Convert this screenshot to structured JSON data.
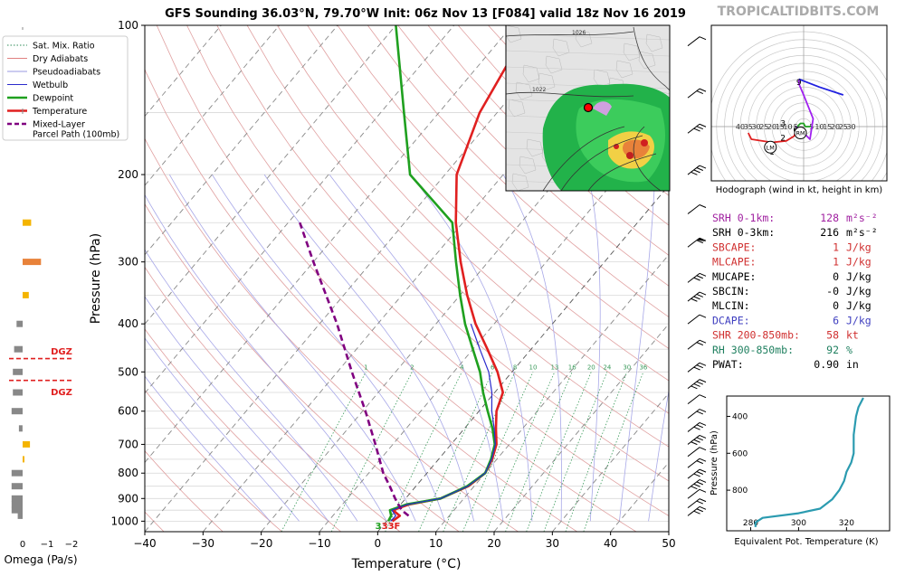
{
  "title": "GFS Sounding 36.03°N, 79.70°W Init: 06z Nov 13 [F084] valid 18z Nov 16 2019",
  "brand": "TROPICALTIDBITS.COM",
  "legend": [
    {
      "label": "Sat. Mix. Ratio",
      "color": "#2e8b57",
      "style": "dotted"
    },
    {
      "label": "Dry Adiabats",
      "color": "#e08080",
      "style": "solid"
    },
    {
      "label": "Pseudoadiabats",
      "color": "#9a9ae0",
      "style": "solid"
    },
    {
      "label": "Wetbulb",
      "color": "#2a2acc",
      "style": "solid"
    },
    {
      "label": "Dewpoint",
      "color": "#1fa01f",
      "style": "thick"
    },
    {
      "label": "Temperature",
      "color": "#e02020",
      "style": "thick"
    },
    {
      "label": "Mixed-Layer\nParcel Path (100mb)",
      "color": "#800080",
      "style": "dashed"
    }
  ],
  "omega_axis": {
    "label": "Omega (Pa/s)",
    "ticks": [
      "0",
      "−1",
      "−2"
    ],
    "dgz_label": "DGZ"
  },
  "skewt": {
    "xlabel": "Temperature (°C)",
    "ylabel": "Pressure (hPa)",
    "x_ticks": [
      "−40",
      "−30",
      "−20",
      "−10",
      "0",
      "10",
      "20",
      "30",
      "40",
      "50"
    ],
    "y_ticks": [
      "100",
      "200",
      "300",
      "400",
      "500",
      "600",
      "700",
      "800",
      "900",
      "1000"
    ],
    "mixratio_labels": [
      "1",
      "2",
      "4",
      "6",
      "8",
      "10",
      "13",
      "16",
      "20",
      "24",
      "30",
      "36"
    ],
    "surface_label_dew": "3",
    "surface_label_temp": "33F"
  },
  "indices": [
    {
      "label": "SRH 0-1km:",
      "value": "128",
      "unit": "m²s⁻²",
      "color": "#a020a0"
    },
    {
      "label": "SRH 0-3km:",
      "value": "216",
      "unit": "m²s⁻²",
      "color": "#000000"
    },
    {
      "label": "SBCAPE:",
      "value": "1",
      "unit": "J/kg",
      "color": "#d03030"
    },
    {
      "label": "MLCAPE:",
      "value": "1",
      "unit": "J/kg",
      "color": "#d03030"
    },
    {
      "label": "MUCAPE:",
      "value": "0",
      "unit": "J/kg",
      "color": "#000000"
    },
    {
      "label": "SBCIN:",
      "value": "-0",
      "unit": "J/kg",
      "color": "#000000"
    },
    {
      "label": "MLCIN:",
      "value": "0",
      "unit": "J/kg",
      "color": "#000000"
    },
    {
      "label": "DCAPE:",
      "value": "6",
      "unit": "J/kg",
      "color": "#4040c0"
    },
    {
      "label": "SHR 200-850mb:",
      "value": "58",
      "unit": "kt",
      "color": "#d03030"
    },
    {
      "label": "RH 300-850mb:",
      "value": "92",
      "unit": "%",
      "color": "#208060"
    },
    {
      "label": "PWAT:",
      "value": "0.90",
      "unit": "in",
      "color": "#000000"
    }
  ],
  "hodograph": {
    "caption": "Hodograph (wind in kt, height in km)",
    "ring_labels": [
      "40",
      "35",
      "30",
      "25",
      "20",
      "15",
      "10",
      "5",
      "5",
      "10",
      "15",
      "20",
      "25",
      "30"
    ],
    "height_labels": [
      "9",
      "3",
      "2",
      "6",
      "1"
    ],
    "markers": [
      "LM",
      "RM"
    ]
  },
  "theta_e": {
    "xlabel": "Equivalent Pot. Temperature (K)",
    "ylabel": "Pressure (hPa)",
    "x_ticks": [
      "280",
      "300",
      "320"
    ],
    "y_ticks": [
      "400",
      "600",
      "800"
    ]
  },
  "map_labels": [
    "1026",
    "1022"
  ],
  "chart_data": [
    {
      "type": "line",
      "title": "GFS Sounding 36.03°N, 79.70°W Init: 06z Nov 13 [F084] valid 18z Nov 16 2019",
      "xlabel": "Temperature (°C)",
      "ylabel": "Pressure (hPa)",
      "xlim": [
        -40,
        50
      ],
      "ylim": [
        1050,
        100
      ],
      "y_scale": "log",
      "series": [
        {
          "name": "Temperature",
          "color": "#e02020",
          "p": [
            1000,
            975,
            950,
            925,
            900,
            850,
            800,
            750,
            700,
            650,
            600,
            550,
            500,
            450,
            400,
            350,
            300,
            250,
            200,
            150,
            100
          ],
          "t": [
            1.0,
            1.5,
            -0.5,
            1.5,
            6.0,
            9.0,
            10.0,
            9.2,
            7.8,
            5.4,
            3.0,
            1.4,
            -2.5,
            -7.5,
            -13.2,
            -18.8,
            -24.7,
            -31.2,
            -38.0,
            -43.0,
            -47.0
          ]
        },
        {
          "name": "Dewpoint",
          "color": "#1fa01f",
          "p": [
            1000,
            975,
            950,
            925,
            900,
            850,
            800,
            750,
            700,
            650,
            600,
            550,
            500,
            450,
            400,
            350,
            300,
            250,
            200,
            150,
            100
          ],
          "t": [
            0.3,
            0.0,
            -1.0,
            1.0,
            6.0,
            8.8,
            10.0,
            9.0,
            7.5,
            4.8,
            1.5,
            -2.0,
            -5.5,
            -10.0,
            -15.0,
            -20.0,
            -25.5,
            -31.8,
            -46.0,
            -56.0,
            -70.0
          ]
        },
        {
          "name": "Wetbulb",
          "color": "#2a2acc",
          "p": [
            1000,
            975,
            950,
            925,
            900,
            850,
            800,
            750,
            700,
            650,
            600,
            550,
            500,
            450,
            400
          ],
          "t": [
            0.7,
            0.8,
            -0.7,
            1.2,
            6.0,
            8.9,
            10.0,
            9.1,
            7.6,
            5.1,
            2.2,
            -0.5,
            -4.0,
            -8.8,
            -14.0
          ]
        },
        {
          "name": "Mixed-Layer Parcel Path (100mb)",
          "color": "#800080",
          "p": [
            975,
            950,
            900,
            850,
            800,
            700,
            600,
            500,
            400,
            300,
            250
          ],
          "t": [
            3.0,
            1.0,
            -1.8,
            -4.5,
            -7.5,
            -13.0,
            -19.5,
            -27.5,
            -37.0,
            -50.0,
            -58.0
          ]
        }
      ]
    },
    {
      "type": "bar",
      "title": "",
      "xlabel": "Omega (Pa/s)",
      "xlim": [
        0.5,
        -2.5
      ],
      "bars": [
        {
          "p": 250,
          "value": -0.35,
          "color": "#f4b400"
        },
        {
          "p": 300,
          "value": -0.75,
          "color": "#e8823a"
        },
        {
          "p": 350,
          "value": -0.25,
          "color": "#f4b400"
        },
        {
          "p": 400,
          "value": 0.25,
          "color": "#888888"
        },
        {
          "p": 450,
          "value": 0.35,
          "color": "#888888"
        },
        {
          "p": 500,
          "value": 0.4,
          "color": "#888888"
        },
        {
          "p": 550,
          "value": 0.4,
          "color": "#888888"
        },
        {
          "p": 600,
          "value": 0.45,
          "color": "#888888"
        },
        {
          "p": 650,
          "value": 0.15,
          "color": "#888888"
        },
        {
          "p": 700,
          "value": -0.3,
          "color": "#f4b400"
        },
        {
          "p": 750,
          "value": -0.05,
          "color": "#f4b400"
        },
        {
          "p": 800,
          "value": 0.45,
          "color": "#888888"
        },
        {
          "p": 850,
          "value": 0.45,
          "color": "#888888"
        },
        {
          "p": 900,
          "value": 0.45,
          "color": "#888888"
        },
        {
          "p": 925,
          "value": 0.45,
          "color": "#888888"
        },
        {
          "p": 950,
          "value": 0.45,
          "color": "#888888"
        },
        {
          "p": 975,
          "value": 0.2,
          "color": "#888888"
        }
      ],
      "dgz_bounds": [
        470,
        520
      ]
    },
    {
      "type": "line",
      "title": "Hodograph (wind in kt, height in km)",
      "series": [
        {
          "name": "0-1km",
          "color": "#e02020",
          "u": [
            -35,
            -33,
            -20,
            -11,
            -6,
            -5
          ],
          "v": [
            -4,
            -8,
            -10,
            -9,
            -6,
            -3
          ]
        },
        {
          "name": "1-3km",
          "color": "#1fa01f",
          "u": [
            -5,
            -4,
            -2,
            0,
            1,
            5
          ],
          "v": [
            -3,
            0,
            2,
            2,
            0,
            0
          ]
        },
        {
          "name": "3-6km",
          "color": "#a020f0",
          "u": [
            -5,
            -2,
            4,
            6,
            0,
            -3,
            -3
          ],
          "v": [
            0,
            -2,
            -8,
            5,
            20,
            27,
            30
          ]
        },
        {
          "name": "6-9km",
          "color": "#2020e0",
          "u": [
            -3,
            10,
            25
          ],
          "v": [
            30,
            25,
            20
          ]
        }
      ]
    },
    {
      "type": "line",
      "title": "",
      "xlabel": "Equivalent Pot. Temperature (K)",
      "ylabel": "Pressure (hPa)",
      "xlim": [
        270,
        338
      ],
      "ylim": [
        1020,
        290
      ],
      "series": [
        {
          "name": "Theta-E",
          "color": "#2b9bb0",
          "theta_e": [
            282,
            282,
            285,
            300,
            309,
            314,
            317,
            319,
            320,
            322,
            323,
            323,
            324,
            325,
            327
          ],
          "p": [
            1000,
            975,
            950,
            925,
            900,
            850,
            800,
            750,
            700,
            650,
            600,
            500,
            400,
            350,
            300
          ]
        }
      ]
    }
  ]
}
